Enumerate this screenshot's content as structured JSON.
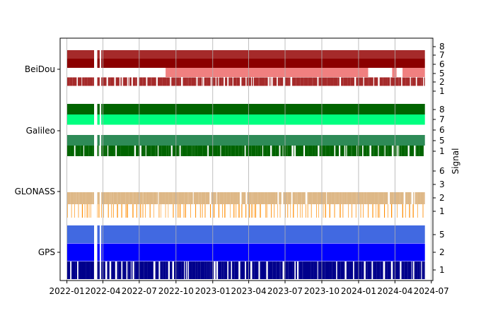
{
  "chart_data": {
    "type": "timeline",
    "title": "",
    "xlabel": "",
    "ylabel_right": "Signal",
    "xlim": [
      "2021-12-15",
      "2024-07-05"
    ],
    "grid": {
      "x": true,
      "y": false
    },
    "x_ticks": [
      "2022-01",
      "2022-04",
      "2022-07",
      "2022-10",
      "2023-01",
      "2023-04",
      "2023-07",
      "2023-10",
      "2024-01",
      "2024-04",
      "2024-07"
    ],
    "data_range": [
      "2022-01-01",
      "2024-06-15"
    ],
    "systems": [
      {
        "name": "BeiDou",
        "signal_ticks": [
          "1",
          "2",
          "5",
          "6",
          "7",
          "8"
        ],
        "bands": [
          {
            "signal": "2",
            "color": "#a52a2a",
            "coverage": "sparse",
            "density": 0.8
          },
          {
            "signal": "5",
            "color": "#f08080",
            "coverage": "partial",
            "segments": [
              [
                "2022-09-05",
                "2024-01-25"
              ],
              [
                "2024-03-25",
                "2024-04-05"
              ],
              [
                "2024-04-20",
                "2024-06-15"
              ]
            ]
          },
          {
            "signal": "6",
            "color": "#8b0000",
            "coverage": "full"
          },
          {
            "signal": "7",
            "color": "#a52a2a",
            "coverage": "full"
          }
        ]
      },
      {
        "name": "Galileo",
        "signal_ticks": [
          "1",
          "5",
          "6",
          "7",
          "8"
        ],
        "bands": [
          {
            "signal": "1",
            "color": "#006400",
            "coverage": "sparse",
            "density": 0.85
          },
          {
            "signal": "5",
            "color": "#2e8b57",
            "coverage": "full"
          },
          {
            "signal": "7",
            "color": "#00ff7f",
            "coverage": "full"
          },
          {
            "signal": "8",
            "color": "#006400",
            "coverage": "full"
          }
        ]
      },
      {
        "name": "GLONASS",
        "signal_ticks": [
          "1",
          "2",
          "3",
          "6"
        ],
        "bands": [
          {
            "signal": "1",
            "color": "#ff8c00",
            "coverage": "sparse",
            "density": 0.12
          },
          {
            "signal": "2",
            "color": "#deb887",
            "coverage": "sparse",
            "density": 0.93
          }
        ]
      },
      {
        "name": "GPS",
        "signal_ticks": [
          "1",
          "2",
          "5"
        ],
        "bands": [
          {
            "signal": "1",
            "color": "#00008b",
            "coverage": "sparse",
            "density": 0.85
          },
          {
            "signal": "2",
            "color": "#0000ff",
            "coverage": "full"
          },
          {
            "signal": "5",
            "color": "#4169e1",
            "coverage": "full"
          }
        ]
      }
    ],
    "gaps": [
      [
        "2022-03-10",
        "2022-03-18"
      ],
      [
        "2022-03-24",
        "2022-03-28"
      ]
    ]
  }
}
